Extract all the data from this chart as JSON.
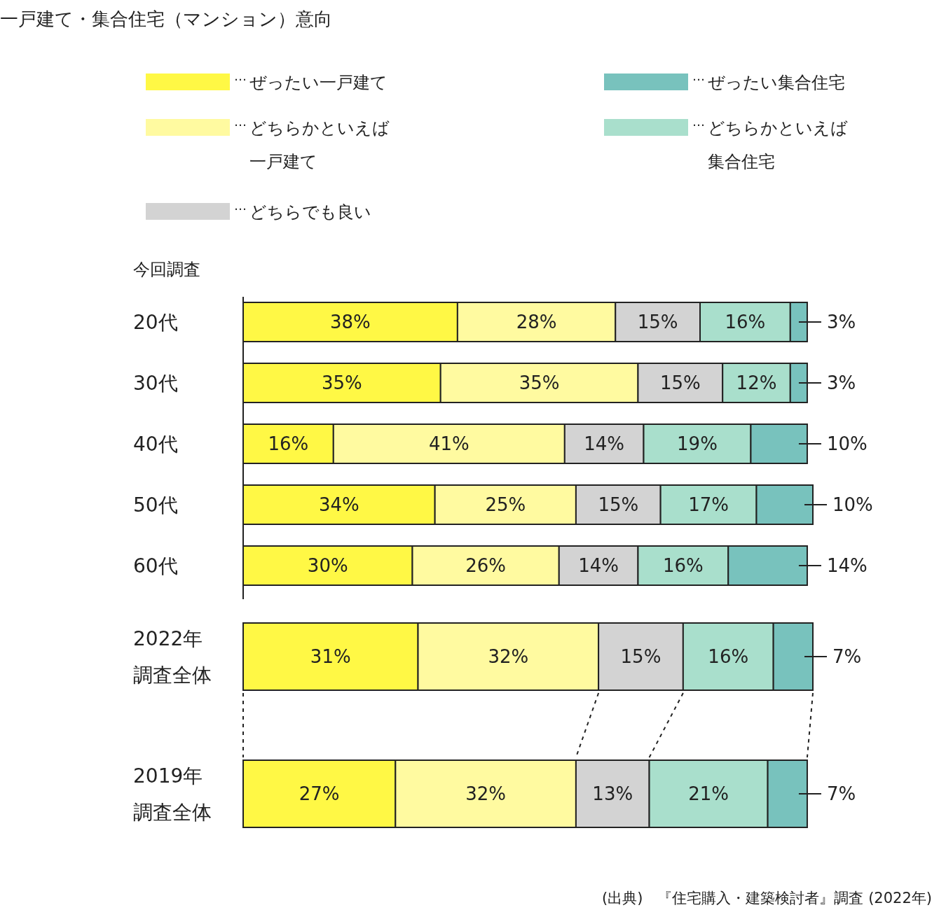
{
  "chart_data": [
    {
      "type": "bar",
      "orientation": "horizontal",
      "stacked": true,
      "legend": "top",
      "title": "一戸建て・集合住宅（マンション）意向",
      "categories": [
        "20代",
        "30代",
        "40代",
        "50代",
        "60代"
      ],
      "series": [
        {
          "name": "ぜったい一戸建て",
          "color": "#fff845",
          "values": [
            38,
            35,
            16,
            34,
            30
          ],
          "value_labels": [
            "38%",
            "35%",
            "16%",
            "34%",
            "30%"
          ]
        },
        {
          "name": "どちらかといえば一戸建て",
          "color": "#fffaa0",
          "values": [
            28,
            35,
            41,
            25,
            26
          ],
          "value_labels": [
            "28%",
            "35%",
            "41%",
            "25%",
            "26%"
          ]
        },
        {
          "name": "どちらでも良い",
          "color": "#d3d3d3",
          "values": [
            15,
            15,
            14,
            15,
            14
          ],
          "value_labels": [
            "15%",
            "15%",
            "14%",
            "15%",
            "14%"
          ]
        },
        {
          "name": "どちらかといえば集合住宅",
          "color": "#a9dfcc",
          "values": [
            16,
            12,
            19,
            17,
            16
          ],
          "value_labels": [
            "16%",
            "12%",
            "19%",
            "17%",
            "16%"
          ]
        },
        {
          "name": "ぜったい集合住宅",
          "color": "#78c2bd",
          "values": [
            3,
            3,
            10,
            10,
            14
          ],
          "value_labels": [
            "3%",
            "3%",
            "10%",
            "10%",
            "14%"
          ]
        }
      ],
      "annotations": [
        "今回調査",
        "…"
      ]
    },
    {
      "type": "bar",
      "orientation": "horizontal",
      "stacked": true,
      "categories": [
        "2022年調査全体",
        "2019年調査全体"
      ],
      "series": [
        {
          "color": "#fff845",
          "values": [
            31,
            27
          ],
          "value_labels": [
            "31%",
            "27%"
          ]
        },
        {
          "color": "#fffaa0",
          "values": [
            32,
            32
          ],
          "value_labels": [
            "32%",
            "32%"
          ]
        },
        {
          "color": "#d3d3d3",
          "values": [
            15,
            13
          ],
          "value_labels": [
            "15%",
            "13%"
          ]
        },
        {
          "color": "#a9dfcc",
          "values": [
            16,
            21
          ],
          "value_labels": [
            "16%",
            "21%"
          ]
        },
        {
          "color": "#78c2bd",
          "values": [
            7,
            7
          ],
          "value_labels": [
            "7%",
            "7%"
          ]
        }
      ],
      "annotations": [
        "(出典)　『住宅購入・建築検討者』調査 (2022年)"
      ]
    }
  ]
}
